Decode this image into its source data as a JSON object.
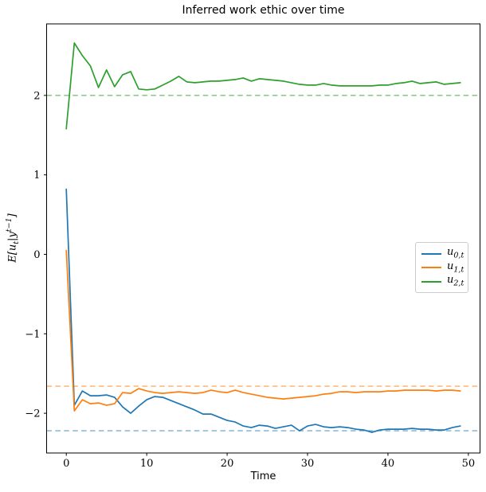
{
  "chart_data": {
    "type": "line",
    "title": "Inferred work ethic over time",
    "xlabel": "Time",
    "ylabel": "E[u_t|y^{t-1}]",
    "ylabel_parts": {
      "pre": "E[u",
      "sub": "t",
      "mid": "|y",
      "sup": "t−1",
      "post": "]"
    },
    "xlim": [
      -2.45,
      51.45
    ],
    "ylim": [
      -2.5,
      2.9
    ],
    "xticks": [
      0,
      10,
      20,
      30,
      40,
      50
    ],
    "yticks": [
      -2,
      -1,
      0,
      1,
      2
    ],
    "grid": false,
    "legend_position": "center right",
    "x": [
      0,
      1,
      2,
      3,
      4,
      5,
      6,
      7,
      8,
      9,
      10,
      11,
      12,
      13,
      14,
      15,
      16,
      17,
      18,
      19,
      20,
      21,
      22,
      23,
      24,
      25,
      26,
      27,
      28,
      29,
      30,
      31,
      32,
      33,
      34,
      35,
      36,
      37,
      38,
      39,
      40,
      41,
      42,
      43,
      44,
      45,
      46,
      47,
      48,
      49
    ],
    "series": [
      {
        "name": "u_{0,t}",
        "label_base": "u",
        "label_sub": "0,t",
        "color": "#1f77b4",
        "values": [
          0.82,
          -1.9,
          -1.72,
          -1.78,
          -1.78,
          -1.77,
          -1.8,
          -1.92,
          -2.0,
          -1.91,
          -1.83,
          -1.79,
          -1.8,
          -1.84,
          -1.88,
          -1.92,
          -1.96,
          -2.01,
          -2.01,
          -2.05,
          -2.09,
          -2.11,
          -2.16,
          -2.18,
          -2.15,
          -2.16,
          -2.19,
          -2.17,
          -2.15,
          -2.22,
          -2.16,
          -2.14,
          -2.17,
          -2.18,
          -2.17,
          -2.18,
          -2.2,
          -2.21,
          -2.24,
          -2.21,
          -2.2,
          -2.2,
          -2.2,
          -2.19,
          -2.2,
          -2.2,
          -2.21,
          -2.21,
          -2.18,
          -2.16
        ]
      },
      {
        "name": "u_{1,t}",
        "label_base": "u",
        "label_sub": "1,t",
        "color": "#ff7f0e",
        "values": [
          0.05,
          -1.97,
          -1.83,
          -1.88,
          -1.87,
          -1.9,
          -1.88,
          -1.74,
          -1.75,
          -1.69,
          -1.72,
          -1.74,
          -1.75,
          -1.74,
          -1.73,
          -1.74,
          -1.75,
          -1.74,
          -1.71,
          -1.73,
          -1.74,
          -1.71,
          -1.74,
          -1.76,
          -1.78,
          -1.8,
          -1.81,
          -1.82,
          -1.81,
          -1.8,
          -1.79,
          -1.78,
          -1.76,
          -1.75,
          -1.73,
          -1.73,
          -1.74,
          -1.73,
          -1.73,
          -1.73,
          -1.72,
          -1.72,
          -1.71,
          -1.71,
          -1.71,
          -1.71,
          -1.72,
          -1.71,
          -1.71,
          -1.72
        ]
      },
      {
        "name": "u_{2,t}",
        "label_base": "u",
        "label_sub": "2,t",
        "color": "#2ca02c",
        "values": [
          1.58,
          2.66,
          2.5,
          2.37,
          2.1,
          2.32,
          2.11,
          2.26,
          2.3,
          2.08,
          2.07,
          2.08,
          2.13,
          2.18,
          2.24,
          2.17,
          2.16,
          2.17,
          2.18,
          2.18,
          2.19,
          2.2,
          2.22,
          2.18,
          2.21,
          2.2,
          2.19,
          2.18,
          2.16,
          2.14,
          2.13,
          2.13,
          2.15,
          2.13,
          2.12,
          2.12,
          2.12,
          2.12,
          2.12,
          2.13,
          2.13,
          2.15,
          2.16,
          2.18,
          2.15,
          2.16,
          2.17,
          2.14,
          2.15,
          2.16
        ]
      }
    ],
    "reference_lines": [
      {
        "for_series": "u_{0,t}",
        "value": -2.22,
        "color": "#8fbbda",
        "style": "dashed"
      },
      {
        "for_series": "u_{1,t}",
        "value": -1.66,
        "color": "#ffbf87",
        "style": "dashed"
      },
      {
        "for_series": "u_{2,t}",
        "value": 2.0,
        "color": "#8dcb8d",
        "style": "dashed"
      }
    ]
  }
}
